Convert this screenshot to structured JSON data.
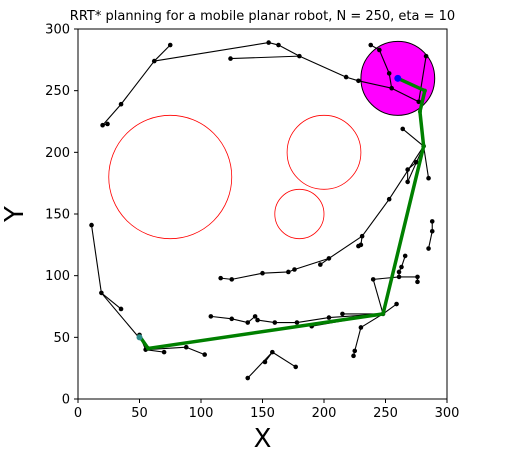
{
  "chart_data": {
    "type": "scatter",
    "title": "RRT* planning for a mobile planar robot, N = 250, eta = 10",
    "xlabel": "X",
    "ylabel": "Y",
    "xlim": [
      0,
      300
    ],
    "ylim": [
      0,
      300
    ],
    "xticks": [
      0,
      50,
      100,
      150,
      200,
      250,
      300
    ],
    "yticks": [
      0,
      50,
      100,
      150,
      200,
      250,
      300
    ],
    "grid": false,
    "colors": {
      "tree": "#000000",
      "path": "#008000",
      "obstacle": "#ff0000",
      "goal_region": "#ff00ff",
      "goal_point": "#0000ff",
      "start_point": "#2e8b8b"
    },
    "obstacles": [
      {
        "cx": 75,
        "cy": 180,
        "r": 50
      },
      {
        "cx": 200,
        "cy": 200,
        "r": 30
      },
      {
        "cx": 180,
        "cy": 150,
        "r": 20
      }
    ],
    "goal_region": {
      "cx": 260,
      "cy": 260,
      "r": 30
    },
    "goal_point": {
      "x": 260,
      "y": 260
    },
    "start_point": {
      "x": 50,
      "y": 50
    },
    "tree_edges": [
      [
        [
          55,
          40
        ],
        [
          50,
          52
        ]
      ],
      [
        [
          55,
          40
        ],
        [
          70,
          38
        ]
      ],
      [
        [
          55,
          40
        ],
        [
          88,
          42
        ]
      ],
      [
        [
          88,
          42
        ],
        [
          103,
          36
        ]
      ],
      [
        [
          248,
          69
        ],
        [
          204,
          66
        ]
      ],
      [
        [
          204,
          66
        ],
        [
          178,
          62
        ]
      ],
      [
        [
          178,
          62
        ],
        [
          160,
          62
        ]
      ],
      [
        [
          160,
          62
        ],
        [
          146,
          64
        ]
      ],
      [
        [
          146,
          64
        ],
        [
          144,
          67
        ]
      ],
      [
        [
          144,
          67
        ],
        [
          138,
          62
        ]
      ],
      [
        [
          138,
          62
        ],
        [
          125,
          65
        ]
      ],
      [
        [
          125,
          65
        ],
        [
          108,
          67
        ]
      ],
      [
        [
          248,
          69
        ],
        [
          230,
          58
        ]
      ],
      [
        [
          230,
          58
        ],
        [
          225,
          39
        ]
      ],
      [
        [
          225,
          39
        ],
        [
          224,
          35
        ]
      ],
      [
        [
          248,
          69
        ],
        [
          259,
          77
        ]
      ],
      [
        [
          248,
          69
        ],
        [
          240,
          97
        ]
      ],
      [
        [
          240,
          97
        ],
        [
          261,
          99
        ]
      ],
      [
        [
          261,
          99
        ],
        [
          261,
          103
        ]
      ],
      [
        [
          261,
          103
        ],
        [
          263,
          107
        ]
      ],
      [
        [
          263,
          107
        ],
        [
          266,
          116
        ]
      ],
      [
        [
          261,
          99
        ],
        [
          276,
          99
        ]
      ],
      [
        [
          276,
          99
        ],
        [
          276,
          95
        ]
      ],
      [
        [
          248,
          69
        ],
        [
          190,
          59
        ]
      ],
      [
        [
          248,
          69
        ],
        [
          215,
          69
        ]
      ],
      [
        [
          281,
          205
        ],
        [
          253,
          162
        ]
      ],
      [
        [
          253,
          162
        ],
        [
          231,
          132
        ]
      ],
      [
        [
          231,
          132
        ],
        [
          230,
          125
        ]
      ],
      [
        [
          230,
          125
        ],
        [
          228,
          124
        ]
      ],
      [
        [
          231,
          132
        ],
        [
          204,
          114
        ]
      ],
      [
        [
          204,
          114
        ],
        [
          197,
          109
        ]
      ],
      [
        [
          204,
          114
        ],
        [
          176,
          105
        ]
      ],
      [
        [
          176,
          105
        ],
        [
          171,
          103
        ]
      ],
      [
        [
          171,
          103
        ],
        [
          150,
          102
        ]
      ],
      [
        [
          150,
          102
        ],
        [
          125,
          97
        ]
      ],
      [
        [
          125,
          97
        ],
        [
          116,
          98
        ]
      ],
      [
        [
          281,
          205
        ],
        [
          264,
          219
        ]
      ],
      [
        [
          281,
          205
        ],
        [
          285,
          179
        ]
      ],
      [
        [
          281,
          205
        ],
        [
          268,
          176
        ]
      ],
      [
        [
          268,
          176
        ],
        [
          268,
          186
        ]
      ],
      [
        [
          268,
          186
        ],
        [
          275,
          192
        ]
      ],
      [
        [
          277,
          241
        ],
        [
          283,
          278
        ]
      ],
      [
        [
          277,
          241
        ],
        [
          255,
          252
        ]
      ],
      [
        [
          255,
          252
        ],
        [
          253,
          264
        ]
      ],
      [
        [
          253,
          264
        ],
        [
          245,
          283
        ]
      ],
      [
        [
          245,
          283
        ],
        [
          238,
          287
        ]
      ],
      [
        [
          255,
          252
        ],
        [
          228,
          258
        ]
      ],
      [
        [
          228,
          258
        ],
        [
          218,
          261
        ]
      ],
      [
        [
          218,
          261
        ],
        [
          180,
          278
        ]
      ],
      [
        [
          180,
          278
        ],
        [
          163,
          287
        ]
      ],
      [
        [
          163,
          287
        ],
        [
          155,
          289
        ]
      ],
      [
        [
          155,
          289
        ],
        [
          62,
          274
        ]
      ],
      [
        [
          62,
          274
        ],
        [
          35,
          239
        ]
      ],
      [
        [
          35,
          239
        ],
        [
          20,
          222
        ]
      ],
      [
        [
          20,
          222
        ],
        [
          24,
          223
        ]
      ],
      [
        [
          62,
          274
        ],
        [
          75,
          287
        ]
      ],
      [
        [
          180,
          278
        ],
        [
          124,
          276
        ]
      ],
      [
        [
          57,
          41
        ],
        [
          19,
          86
        ]
      ],
      [
        [
          19,
          86
        ],
        [
          11,
          141
        ]
      ],
      [
        [
          19,
          86
        ],
        [
          35,
          73
        ]
      ],
      [
        [
          158,
          38
        ],
        [
          138,
          17
        ]
      ],
      [
        [
          158,
          38
        ],
        [
          152,
          30
        ]
      ],
      [
        [
          158,
          38
        ],
        [
          177,
          26
        ]
      ],
      [
        [
          285,
          122
        ],
        [
          288,
          136
        ]
      ],
      [
        [
          288,
          136
        ],
        [
          288,
          144
        ]
      ]
    ],
    "path": [
      [
        50,
        51
      ],
      [
        57,
        41
      ],
      [
        248,
        69
      ],
      [
        281,
        205
      ],
      [
        278,
        233
      ],
      [
        282,
        250
      ],
      [
        260,
        260
      ]
    ]
  }
}
